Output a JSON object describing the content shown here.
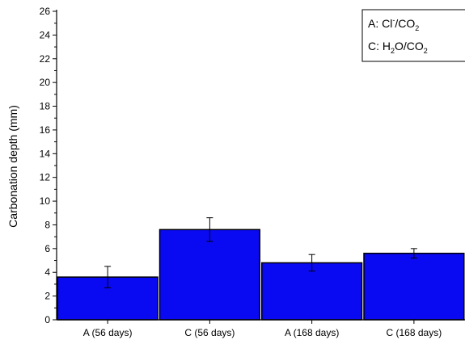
{
  "chart_data": {
    "type": "bar",
    "title": "",
    "xlabel": "",
    "ylabel": "Carbonation depth (mm)",
    "ylim": [
      0,
      26
    ],
    "ytick_step": 2,
    "categories": [
      "A (56 days)",
      "C (56 days)",
      "A (168 days)",
      "C (168 days)"
    ],
    "values": [
      3.6,
      7.6,
      4.8,
      5.6
    ],
    "errors": [
      0.9,
      1.0,
      0.7,
      0.4
    ],
    "bar_color": "#0a0af2",
    "grid": false,
    "legend": {
      "placement": "top-right",
      "entries": [
        {
          "prefix": "A: Cl",
          "sup": "-",
          "mid": "/CO",
          "sub": "2",
          "tail": ""
        },
        {
          "prefix": "C: H",
          "sub": "2",
          "mid": "O/CO",
          "sub2": "2",
          "tail": ""
        }
      ]
    }
  }
}
